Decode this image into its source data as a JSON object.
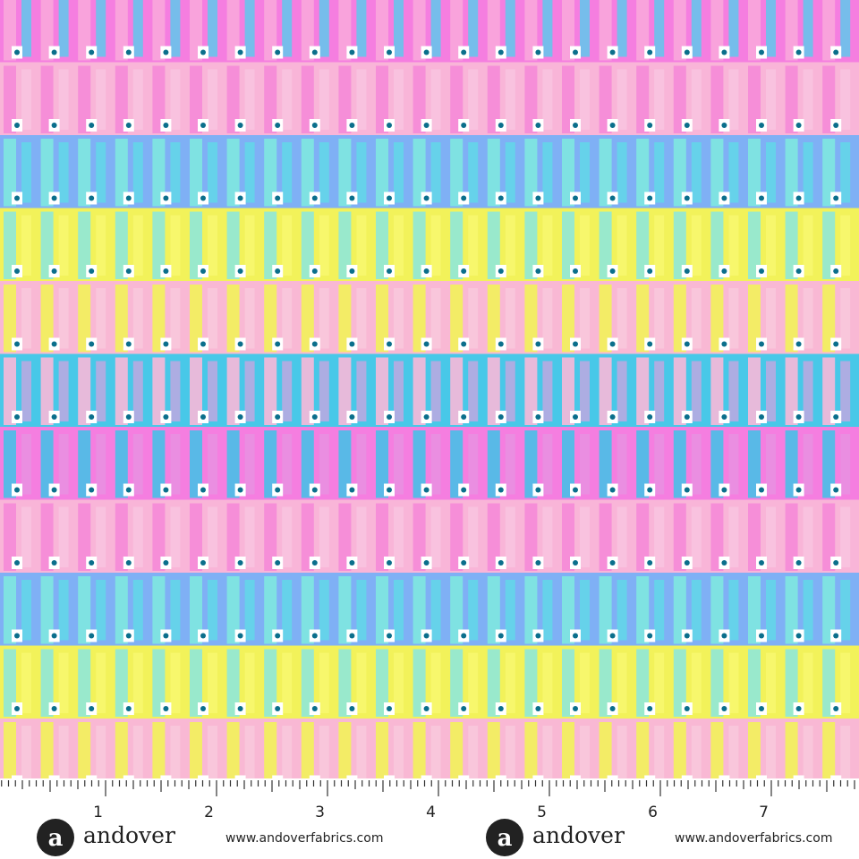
{
  "ruler": {
    "labels": [
      "1",
      "2",
      "3",
      "4",
      "5",
      "6",
      "7"
    ]
  },
  "footer": {
    "items": [
      {
        "logo": "a",
        "brand": "andover",
        "url": "www.andoverfabrics.com"
      },
      {
        "logo": "a",
        "brand": "andover",
        "url": "www.andoverfabrics.com"
      }
    ]
  }
}
